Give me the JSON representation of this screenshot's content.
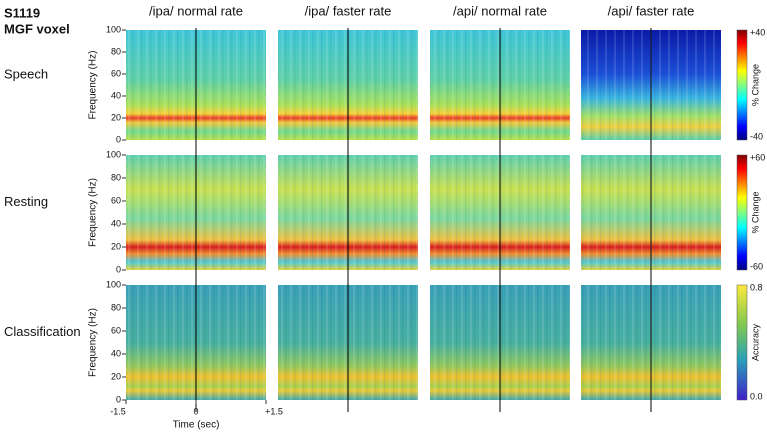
{
  "header": {
    "subject": "S1119",
    "voxel": "MGF voxel"
  },
  "columns": [
    "/ipa/ normal rate",
    "/ipa/ faster rate",
    "/api/ normal rate",
    "/api/ faster rate"
  ],
  "rows": [
    {
      "label": "Speech",
      "colorbar": {
        "max": "+40",
        "min": "-40",
        "label": "% Change"
      }
    },
    {
      "label": "Resting",
      "colorbar": {
        "max": "+60",
        "min": "-60",
        "label": "% Change"
      }
    },
    {
      "label": "Classification",
      "colorbar": {
        "max": "0.8",
        "min": "0.0",
        "label": "Accuracy"
      }
    }
  ],
  "y_axis": {
    "label": "Frequency (Hz)",
    "ticks": [
      0,
      20,
      40,
      60,
      80,
      100
    ]
  },
  "x_axis": {
    "label": "Time (sec)",
    "ticks": [
      -1.5,
      0,
      {
        "value": 1.5,
        "label": "+1.5"
      }
    ]
  }
}
